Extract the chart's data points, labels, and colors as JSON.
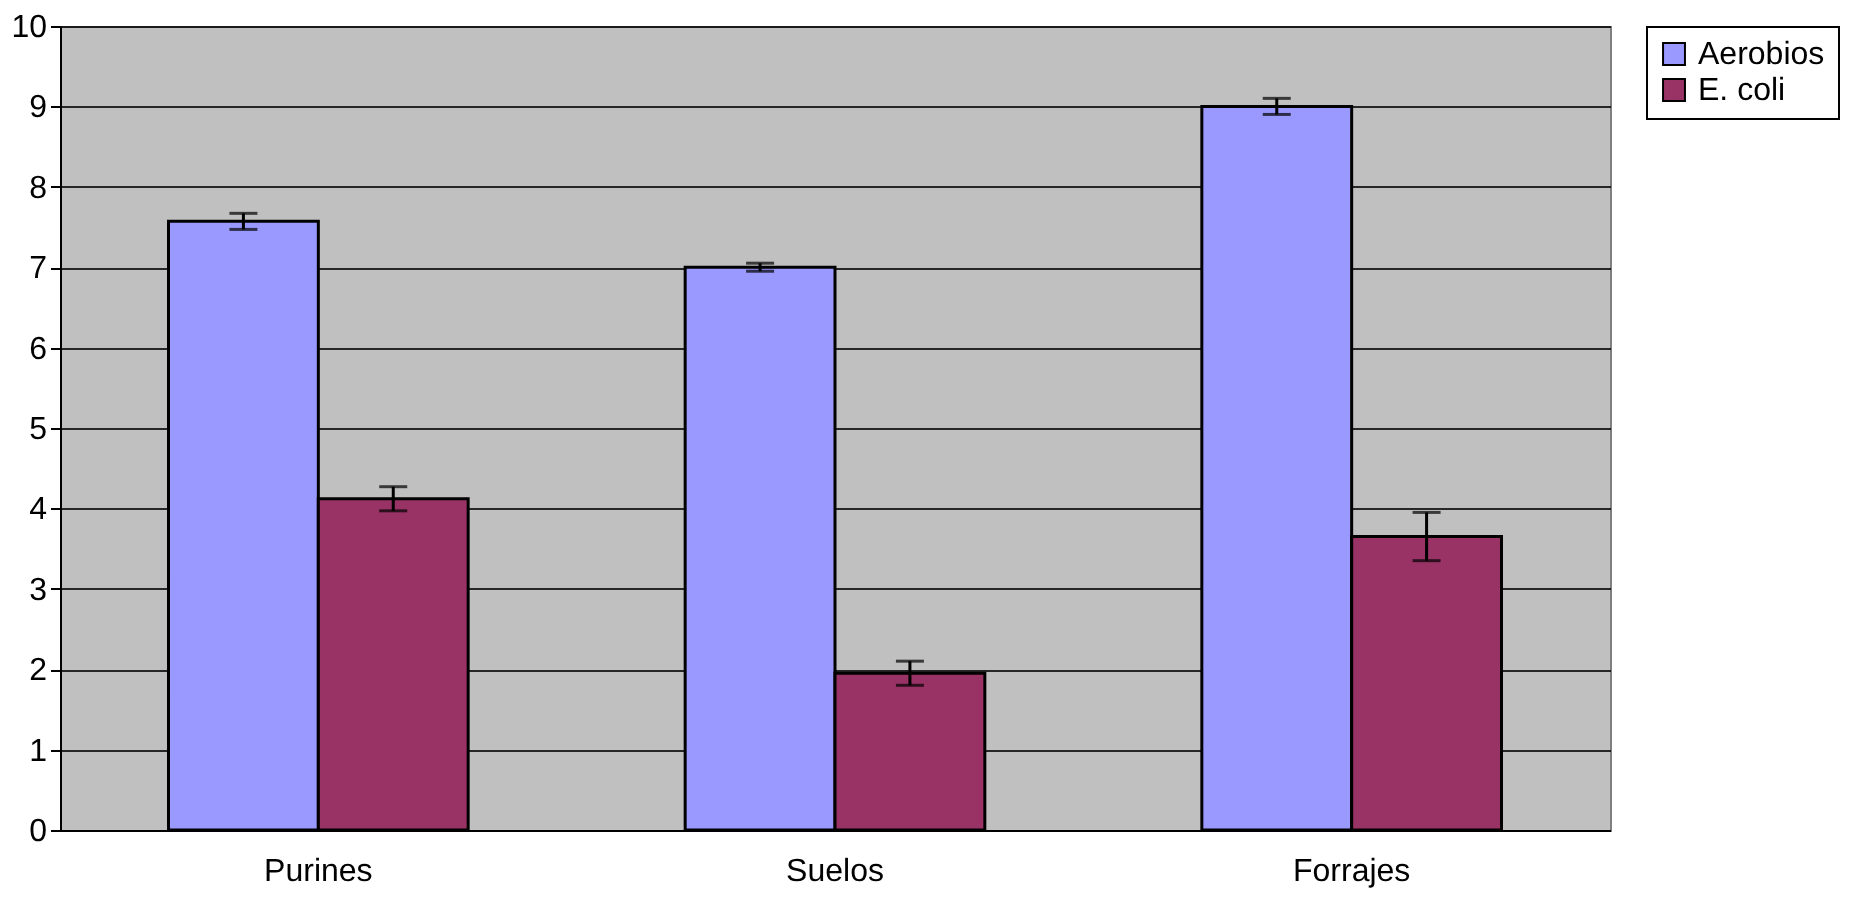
{
  "chart_data": {
    "type": "bar",
    "categories": [
      "Purines",
      "Suelos",
      "Forrajes"
    ],
    "series": [
      {
        "name": "Aerobios",
        "color": "#9999ff",
        "values": [
          7.57,
          7.0,
          9.0
        ],
        "errors": [
          0.1,
          0.05,
          0.1
        ]
      },
      {
        "name": "E. coli",
        "color": "#993366",
        "values": [
          4.12,
          1.95,
          3.65
        ],
        "errors": [
          0.15,
          0.15,
          0.3
        ]
      }
    ],
    "ylim": [
      0,
      10
    ],
    "yticks": [
      0,
      1,
      2,
      3,
      4,
      5,
      6,
      7,
      8,
      9,
      10
    ],
    "grid": "y",
    "legend": "right"
  }
}
